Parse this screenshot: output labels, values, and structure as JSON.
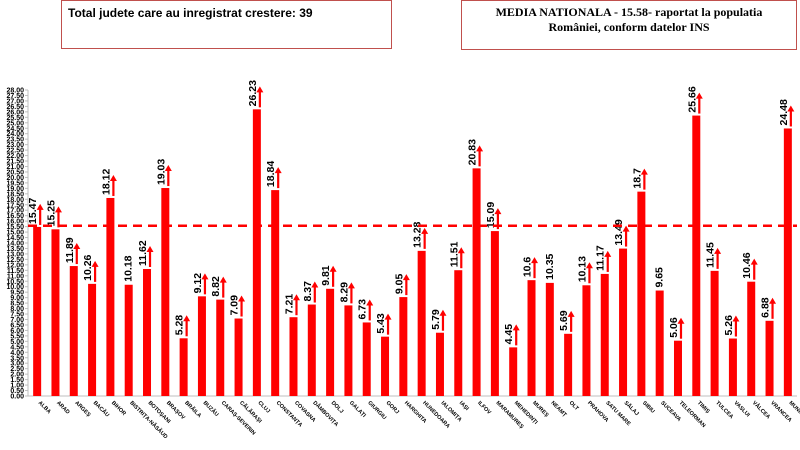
{
  "header": {
    "left_text": "Total judete care au inregistrat crestere: 39",
    "right_line1": "MEDIA NATIONALA - 15.58-  raportat la populatia",
    "right_line2": "României, conform datelor INS"
  },
  "chart_data": {
    "type": "bar",
    "title": "",
    "xlabel": "",
    "ylabel": "",
    "ylim": [
      0,
      28
    ],
    "ytick_step": 0.5,
    "ytick_label_step": 1,
    "grid": false,
    "reference_line": {
      "value": 15.58,
      "style": "dashed",
      "color": "#ff0000"
    },
    "bar_color": "#ff0000",
    "arrow_color": "#ff0000",
    "categories": [
      "ALBA",
      "ARAD",
      "ARGEȘ",
      "BACĂU",
      "BIHOR",
      "BISTRIȚA-NĂSĂUD",
      "BOTOȘANI",
      "BRAȘOV",
      "BRĂILA",
      "BUZĂU",
      "CARAȘ-SEVERIN",
      "CĂLĂRAȘI",
      "CLUJ",
      "CONSTANȚA",
      "COVASNA",
      "DÂMBOVIȚA",
      "DOLJ",
      "GALAȚI",
      "GIURGIU",
      "GORJ",
      "HARGHITA",
      "HUNEDOARA",
      "IALOMIȚA",
      "IAȘI",
      "ILFOV",
      "MARAMUREȘ",
      "MEHEDINȚI",
      "MUREȘ",
      "NEAMȚ",
      "OLT",
      "PRAHOVA",
      "SATU MARE",
      "SĂLAJ",
      "SIBIU",
      "SUCEAVA",
      "TELEORMAN",
      "TIMIȘ",
      "TULCEA",
      "VASLUI",
      "VÂLCEA",
      "VRANCEA",
      "MUNICIPIUL BUCUREȘTI"
    ],
    "values": [
      15.47,
      15.25,
      11.89,
      10.26,
      18.12,
      10.18,
      11.62,
      19.03,
      5.28,
      9.12,
      8.82,
      7.09,
      26.23,
      18.84,
      7.21,
      8.37,
      9.81,
      8.29,
      6.73,
      5.43,
      9.05,
      13.28,
      5.79,
      11.51,
      20.83,
      15.09,
      4.45,
      10.6,
      10.35,
      5.69,
      10.13,
      11.17,
      13.49,
      18.7,
      9.65,
      5.06,
      25.66,
      11.45,
      5.26,
      10.46,
      6.88,
      24.48
    ],
    "value_labels": [
      "15.47",
      "15.25",
      "11.89",
      "10.26",
      "18.12",
      "10.18",
      "11.62",
      "19.03",
      "5.28",
      "9.12",
      "8.82",
      "7.09",
      "26.23",
      "18.84",
      "7.21",
      "8.37",
      "9.81",
      "8.29",
      "6.73",
      "5.43",
      "9.05",
      "13.28",
      "5.79",
      "11.51",
      "20.83",
      "15.09",
      "4.45",
      "10.6",
      "10.35",
      "5.69",
      "10.13",
      "11.17",
      "13.49",
      "18.7",
      "9.65",
      "5.06",
      "25.66",
      "11.45",
      "5.26",
      "10.46",
      "6.88",
      "24.48"
    ],
    "increase_arrow": [
      true,
      true,
      true,
      true,
      true,
      false,
      true,
      true,
      true,
      true,
      true,
      true,
      true,
      true,
      true,
      true,
      true,
      true,
      true,
      true,
      true,
      true,
      true,
      true,
      true,
      true,
      true,
      true,
      false,
      true,
      true,
      true,
      true,
      true,
      false,
      true,
      true,
      true,
      true,
      true,
      true,
      true
    ]
  }
}
